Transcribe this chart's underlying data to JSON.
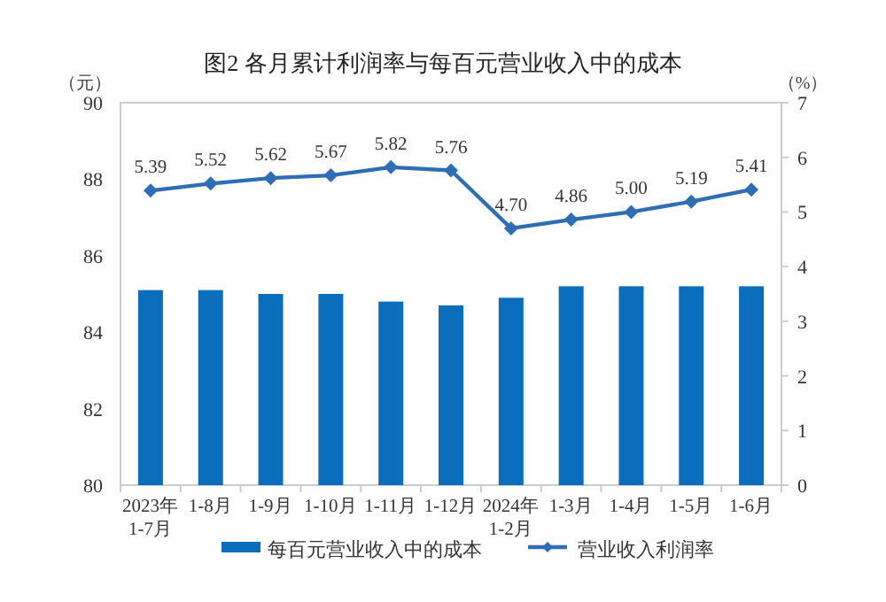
{
  "chart_data": {
    "type": "bar",
    "title": "图2  各月累计利润率与每百元营业收入中的成本",
    "ylabel": "（元）",
    "y2label": "（%）",
    "categories": [
      "2023年 1-7月",
      "1-8月",
      "1-9月",
      "1-10月",
      "1-11月",
      "1-12月",
      "2024年 1-2月",
      "1-3月",
      "1-4月",
      "1-5月",
      "1-6月"
    ],
    "series": [
      {
        "name": "每百元营业收入中的成本",
        "color": "#0a6ebd",
        "values": [
          85.1,
          85.1,
          85.0,
          85.0,
          84.8,
          84.7,
          84.9,
          85.2,
          85.2,
          85.2,
          85.2
        ]
      },
      {
        "name": "营业收入利润率",
        "type": "line",
        "axis": "y2",
        "color": "#2f6db5",
        "marker": "diamond",
        "values": [
          5.39,
          5.52,
          5.62,
          5.67,
          5.82,
          5.76,
          4.7,
          4.86,
          5.0,
          5.19,
          5.41
        ],
        "value_labels": [
          "5.39",
          "5.52",
          "5.62",
          "5.67",
          "5.82",
          "5.76",
          "4.70",
          "4.86",
          "5.00",
          "5.19",
          "5.41"
        ]
      }
    ],
    "ylim": [
      80,
      90
    ],
    "yticks": [
      80,
      82,
      84,
      86,
      88,
      90
    ],
    "y2lim": [
      0,
      7
    ],
    "y2ticks": [
      0,
      1,
      2,
      3,
      4,
      5,
      6,
      7
    ],
    "grid": false,
    "legend": "bottom"
  }
}
